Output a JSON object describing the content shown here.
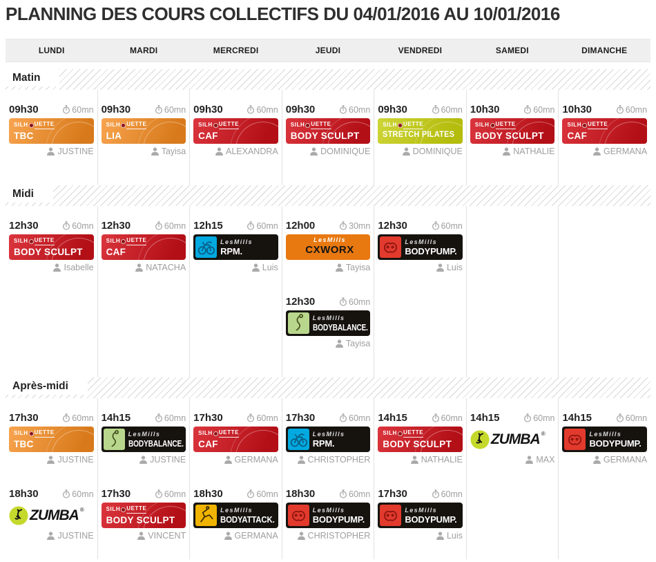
{
  "title": "PLANNING DES COURS COLLECTIFS DU 04/01/2016 AU 10/01/2016",
  "days": [
    "LUNDI",
    "MARDI",
    "MERCREDI",
    "JEUDI",
    "VENDREDI",
    "SAMEDI",
    "DIMANCHE"
  ],
  "marks": {
    "registered": "®"
  },
  "colors": {
    "silhouette_orange": "#f68b1f",
    "silhouette_red": "#d5121b",
    "stretch_green": "#c3cc0d",
    "lesmills_black": "#16130f",
    "cxworx_orange": "#e87810",
    "rpm_blue": "#00a9e0",
    "bodypump_red": "#e23a2d",
    "bodybalance_green": "#b9d78c",
    "bodyattack_yellow": "#f0b400",
    "zumba_green": "#c5d92d",
    "header_bg": "#efefef",
    "text_dark": "#222222",
    "text_muted": "#9e9e9e"
  },
  "sections": [
    {
      "label": "Matin",
      "rows": [
        [
          {
            "time": "09h30",
            "duration": "60mn",
            "brand": "SILHOUETTE",
            "class": "TBC",
            "style": "sil-orange",
            "teacher": "JUSTINE"
          },
          {
            "time": "09h30",
            "duration": "60mn",
            "brand": "SILHOUETTE",
            "class": "LIA",
            "style": "sil-orange",
            "teacher": "Tayisa"
          },
          {
            "time": "09h30",
            "duration": "60mn",
            "brand": "SILHOUETTE",
            "class": "CAF",
            "style": "sil-red",
            "teacher": "ALEXANDRA"
          },
          {
            "time": "09h30",
            "duration": "60mn",
            "brand": "SILHOUETTE",
            "class": "BODY SCULPT",
            "style": "sil-red",
            "teacher": "DOMINIQUE"
          },
          {
            "time": "09h30",
            "duration": "60mn",
            "brand": "SILHOUETTE",
            "class": "STRETCH PILATES",
            "style": "sil-green",
            "teacher": "DOMINIQUE"
          },
          {
            "time": "10h30",
            "duration": "60mn",
            "brand": "SILHOUETTE",
            "class": "BODY SCULPT",
            "style": "sil-red",
            "teacher": "NATHALIE"
          },
          {
            "time": "10h30",
            "duration": "60mn",
            "brand": "SILHOUETTE",
            "class": "CAF",
            "style": "sil-red",
            "teacher": "GERMANA"
          }
        ]
      ]
    },
    {
      "label": "Midi",
      "rows": [
        [
          {
            "time": "12h30",
            "duration": "60mn",
            "brand": "SILHOUETTE",
            "class": "BODY SCULPT",
            "style": "sil-red",
            "teacher": "Isabelle"
          },
          {
            "time": "12h30",
            "duration": "60mn",
            "brand": "SILHOUETTE",
            "class": "CAF",
            "style": "sil-red",
            "teacher": "NATACHA"
          },
          {
            "time": "12h15",
            "duration": "60mn",
            "brand": "LesMills",
            "class": "RPM.",
            "style": "lm-rpm",
            "teacher": "Luis"
          },
          {
            "time": "12h00",
            "duration": "30mn",
            "brand": "LesMills",
            "class": "CXWORX",
            "style": "lm-cxworx",
            "teacher": "Tayisa"
          },
          {
            "time": "12h30",
            "duration": "60mn",
            "brand": "LesMills",
            "class": "BODYPUMP.",
            "style": "lm-pump",
            "teacher": "Luis"
          },
          null,
          null
        ],
        [
          null,
          null,
          null,
          {
            "time": "12h30",
            "duration": "60mn",
            "brand": "LesMills",
            "class": "BODYBALANCE.",
            "style": "lm-balance",
            "teacher": "Tayisa"
          },
          null,
          null,
          null
        ]
      ]
    },
    {
      "label": "Après-midi",
      "rows": [
        [
          {
            "time": "17h30",
            "duration": "60mn",
            "brand": "SILHOUETTE",
            "class": "TBC",
            "style": "sil-orange",
            "teacher": "JUSTINE"
          },
          {
            "time": "14h15",
            "duration": "60mn",
            "brand": "LesMills",
            "class": "BODYBALANCE.",
            "style": "lm-balance",
            "teacher": "JUSTINE"
          },
          {
            "time": "17h30",
            "duration": "60mn",
            "brand": "SILHOUETTE",
            "class": "CAF",
            "style": "sil-red",
            "teacher": "GERMANA"
          },
          {
            "time": "17h30",
            "duration": "60mn",
            "brand": "LesMills",
            "class": "RPM.",
            "style": "lm-rpm",
            "teacher": "CHRISTOPHER"
          },
          {
            "time": "14h15",
            "duration": "60mn",
            "brand": "SILHOUETTE",
            "class": "BODY SCULPT",
            "style": "sil-red",
            "teacher": "NATHALIE"
          },
          {
            "time": "14h15",
            "duration": "60mn",
            "brand": "ZUMBA",
            "class": "ZUMBA",
            "style": "zumba",
            "teacher": "MAX"
          },
          {
            "time": "14h15",
            "duration": "60mn",
            "brand": "LesMills",
            "class": "BODYPUMP.",
            "style": "lm-pump",
            "teacher": "GERMANA"
          }
        ],
        [
          {
            "time": "18h30",
            "duration": "60mn",
            "brand": "ZUMBA",
            "class": "ZUMBA",
            "style": "zumba",
            "teacher": "JUSTINE"
          },
          {
            "time": "17h30",
            "duration": "60mn",
            "brand": "SILHOUETTE",
            "class": "BODY SCULPT",
            "style": "sil-red",
            "teacher": "VINCENT"
          },
          {
            "time": "18h30",
            "duration": "60mn",
            "brand": "LesMills",
            "class": "BODYATTACK.",
            "style": "lm-attack",
            "teacher": "GERMANA"
          },
          {
            "time": "18h30",
            "duration": "60mn",
            "brand": "LesMills",
            "class": "BODYPUMP.",
            "style": "lm-pump",
            "teacher": "CHRISTOPHER"
          },
          {
            "time": "17h30",
            "duration": "60mn",
            "brand": "LesMills",
            "class": "BODYPUMP.",
            "style": "lm-pump",
            "teacher": "Luis"
          },
          null,
          null
        ]
      ]
    }
  ]
}
